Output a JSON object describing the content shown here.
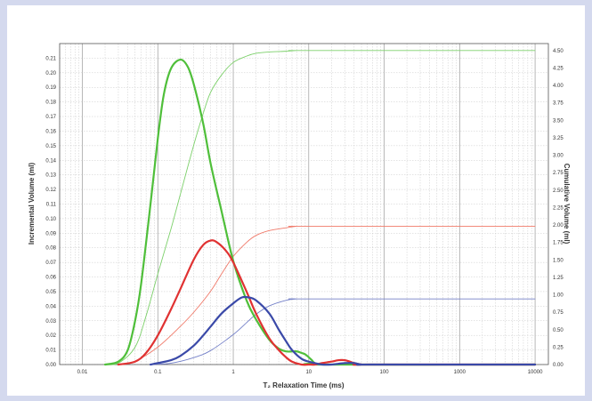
{
  "chart_data": {
    "type": "line",
    "title": "",
    "xlabel": "T₂ Relaxation Time (ms)",
    "ylabel": "Incremental Volume (ml)",
    "y2label": "Cumulative Volume (ml)",
    "x_scale": "log",
    "xlim": [
      0.005,
      15000
    ],
    "ylim": [
      0,
      0.22
    ],
    "y2lim": [
      0,
      4.6
    ],
    "x_ticks": [
      "0.01",
      "0.1",
      "1",
      "10",
      "100",
      "1000",
      "10000"
    ],
    "y_ticks": [
      "0.00",
      "0.01",
      "0.02",
      "0.03",
      "0.04",
      "0.05",
      "0.06",
      "0.07",
      "0.08",
      "0.09",
      "0.10",
      "0.11",
      "0.12",
      "0.13",
      "0.14",
      "0.15",
      "0.16",
      "0.17",
      "0.18",
      "0.19",
      "0.20",
      "0.21"
    ],
    "y2_ticks": [
      "0.00",
      "0.25",
      "0.50",
      "0.75",
      "1.00",
      "1.25",
      "1.50",
      "1.75",
      "2.00",
      "2.25",
      "2.50",
      "2.75",
      "3.00",
      "3.25",
      "3.50",
      "3.75",
      "4.00",
      "4.25",
      "4.50"
    ],
    "grid": true,
    "legend": "none",
    "series": [
      {
        "axis": "left",
        "color": "#4fbf3a",
        "width": 2.2,
        "x": [
          0.02,
          0.03,
          0.04,
          0.05,
          0.06,
          0.08,
          0.1,
          0.12,
          0.15,
          0.2,
          0.25,
          0.3,
          0.4,
          0.5,
          0.7,
          1,
          1.5,
          2,
          3,
          4,
          5,
          6,
          7,
          8,
          9,
          10,
          11,
          12,
          15,
          10000
        ],
        "y": [
          0,
          0.002,
          0.01,
          0.03,
          0.055,
          0.11,
          0.155,
          0.185,
          0.203,
          0.209,
          0.204,
          0.192,
          0.165,
          0.138,
          0.105,
          0.071,
          0.044,
          0.031,
          0.017,
          0.011,
          0.009,
          0.009,
          0.009,
          0.008,
          0.007,
          0.005,
          0.003,
          0.001,
          0,
          0
        ]
      },
      {
        "axis": "left",
        "color": "#e03232",
        "width": 2.2,
        "x": [
          0.03,
          0.05,
          0.07,
          0.1,
          0.15,
          0.2,
          0.3,
          0.4,
          0.5,
          0.6,
          0.8,
          1,
          1.5,
          2,
          3,
          4,
          5,
          6,
          8,
          10,
          12,
          15,
          20,
          25,
          30,
          35,
          40,
          50,
          60,
          10000
        ],
        "y": [
          0,
          0.002,
          0.008,
          0.02,
          0.038,
          0.052,
          0.072,
          0.082,
          0.085,
          0.084,
          0.078,
          0.07,
          0.05,
          0.035,
          0.018,
          0.01,
          0.005,
          0.002,
          0,
          0,
          0,
          0.001,
          0.002,
          0.003,
          0.003,
          0.002,
          0.001,
          0,
          0,
          0
        ]
      },
      {
        "axis": "left",
        "color": "#3a49a8",
        "width": 2.2,
        "x": [
          0.08,
          0.1,
          0.15,
          0.2,
          0.3,
          0.4,
          0.5,
          0.7,
          1,
          1.3,
          1.6,
          2,
          3,
          4,
          5,
          6,
          8,
          10,
          12,
          15,
          20,
          30,
          40,
          50,
          70,
          10000
        ],
        "y": [
          0,
          0.001,
          0.003,
          0.006,
          0.013,
          0.02,
          0.026,
          0.035,
          0.042,
          0.046,
          0.046,
          0.044,
          0.035,
          0.024,
          0.016,
          0.01,
          0.004,
          0.002,
          0.001,
          0,
          0,
          0.001,
          0.001,
          0,
          0,
          0
        ]
      },
      {
        "axis": "right",
        "color": "#7cd06a",
        "width": 0.9,
        "x": [
          0.02,
          0.03,
          0.05,
          0.07,
          0.1,
          0.15,
          0.2,
          0.3,
          0.4,
          0.5,
          0.7,
          1,
          1.5,
          2,
          3,
          5,
          7,
          10,
          10000
        ],
        "y": [
          0,
          0.02,
          0.25,
          0.7,
          1.3,
          1.95,
          2.45,
          3.15,
          3.6,
          3.9,
          4.15,
          4.33,
          4.42,
          4.46,
          4.48,
          4.49,
          4.5,
          4.5,
          4.5
        ]
      },
      {
        "axis": "right",
        "color": "#f07a6a",
        "width": 0.9,
        "x": [
          0.03,
          0.05,
          0.1,
          0.2,
          0.3,
          0.5,
          0.7,
          1,
          1.5,
          2,
          3,
          5,
          7,
          10,
          10000
        ],
        "y": [
          0,
          0.05,
          0.25,
          0.55,
          0.75,
          1.05,
          1.3,
          1.55,
          1.75,
          1.85,
          1.92,
          1.96,
          1.98,
          1.98,
          1.98
        ]
      },
      {
        "axis": "right",
        "color": "#7480c8",
        "width": 0.9,
        "x": [
          0.08,
          0.15,
          0.3,
          0.5,
          1,
          1.5,
          2,
          3,
          5,
          7,
          10,
          10000
        ],
        "y": [
          0,
          0.02,
          0.1,
          0.2,
          0.43,
          0.6,
          0.72,
          0.84,
          0.92,
          0.94,
          0.94,
          0.94
        ]
      }
    ]
  }
}
